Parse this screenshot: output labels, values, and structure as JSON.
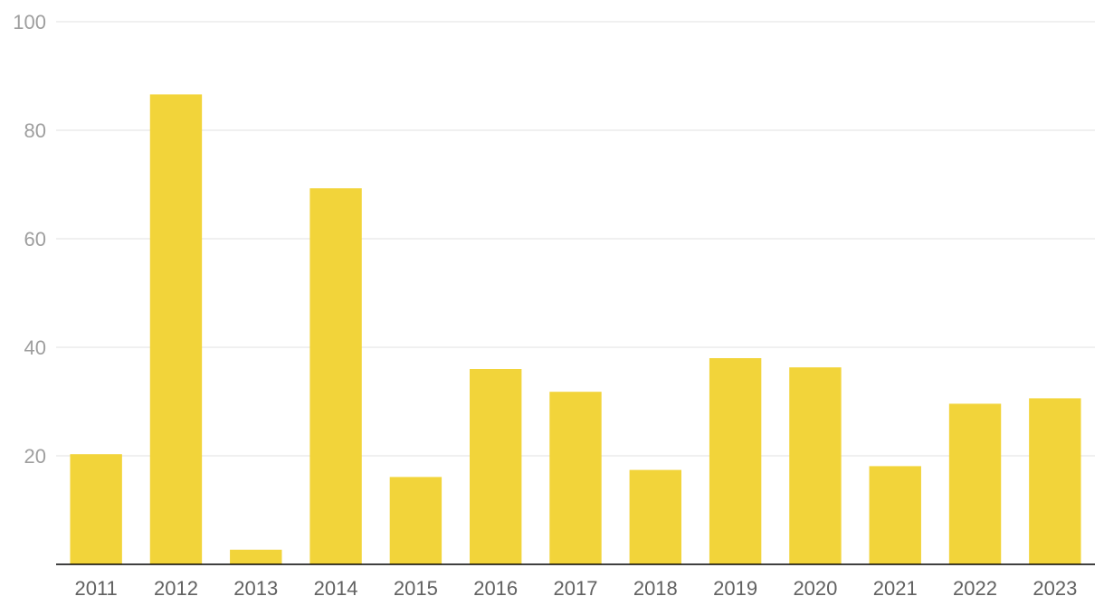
{
  "chart_data": {
    "type": "bar",
    "categories": [
      "2011",
      "2012",
      "2013",
      "2014",
      "2015",
      "2016",
      "2017",
      "2018",
      "2019",
      "2020",
      "2021",
      "2022",
      "2023"
    ],
    "values": [
      20.3,
      86.6,
      2.7,
      69.3,
      16.1,
      36.0,
      31.8,
      17.4,
      38.0,
      36.3,
      18.1,
      29.6,
      30.6
    ],
    "title": "",
    "xlabel": "",
    "ylabel": "",
    "ylim": [
      0,
      100
    ],
    "yticks": [
      20,
      40,
      60,
      80,
      100
    ],
    "grid": true,
    "legend": "none",
    "bar_color": "#f2d43a",
    "grid_color": "#e0e0e0",
    "axis_color": "#000000"
  }
}
